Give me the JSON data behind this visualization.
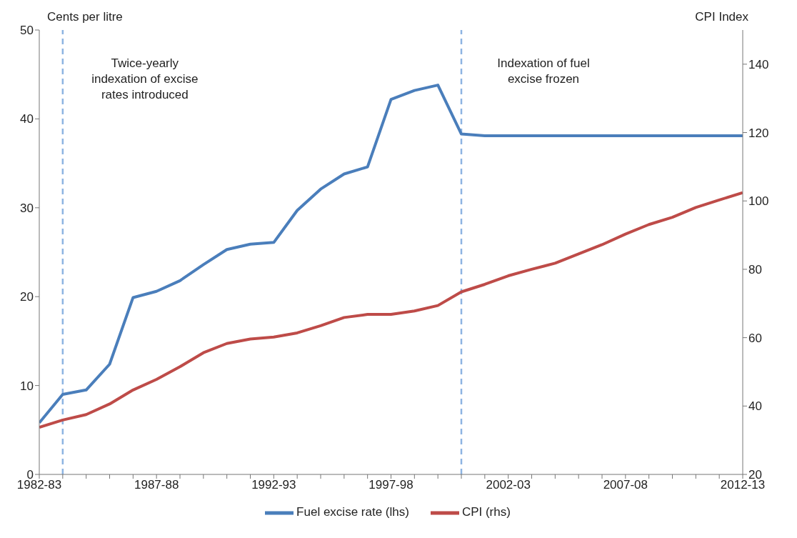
{
  "chart_data": {
    "type": "line",
    "categories": [
      "1982-83",
      null,
      null,
      null,
      null,
      "1987-88",
      null,
      null,
      null,
      null,
      "1992-93",
      null,
      null,
      null,
      null,
      "1997-98",
      null,
      null,
      null,
      null,
      "2002-03",
      null,
      null,
      null,
      null,
      "2007-08",
      null,
      null,
      null,
      null,
      "2012-13"
    ],
    "ylabel": "Cents per litre",
    "y2label": "CPI Index",
    "ylim": [
      0,
      50
    ],
    "yticks": [
      0,
      10,
      20,
      30,
      40,
      50
    ],
    "y2lim": [
      20,
      150
    ],
    "y2ticks": [
      20,
      40,
      60,
      80,
      100,
      120,
      140
    ],
    "series": [
      {
        "name": "Fuel excise rate (lhs)",
        "color": "#4a7ebb",
        "values": [
          5.8,
          9.0,
          9.5,
          12.4,
          19.9,
          20.6,
          21.8,
          23.6,
          25.3,
          25.9,
          26.1,
          29.7,
          32.1,
          33.8,
          34.6,
          42.2,
          43.2,
          43.8,
          38.3,
          38.1,
          38.1,
          38.1,
          38.1,
          38.1,
          38.1,
          38.1,
          38.1,
          38.1,
          38.1,
          38.1,
          38.1
        ]
      },
      {
        "name": "CPI (rhs)",
        "color": "#be4b48",
        "axis": "y2",
        "values": [
          33.8,
          35.9,
          37.5,
          40.6,
          44.7,
          47.8,
          51.5,
          55.6,
          58.3,
          59.6,
          60.2,
          61.4,
          63.5,
          65.9,
          66.8,
          66.8,
          67.8,
          69.4,
          73.4,
          75.6,
          78.1,
          80.0,
          81.8,
          84.5,
          87.2,
          90.3,
          93.1,
          95.2,
          98.1,
          100.3,
          102.4
        ]
      }
    ],
    "annotations": [
      "Twice-yearly\nindexation of excise\nrates introduced",
      "Indexation of fuel\nexcise frozen"
    ],
    "marker": "none",
    "line_style": "solid",
    "legend": "bottom"
  }
}
